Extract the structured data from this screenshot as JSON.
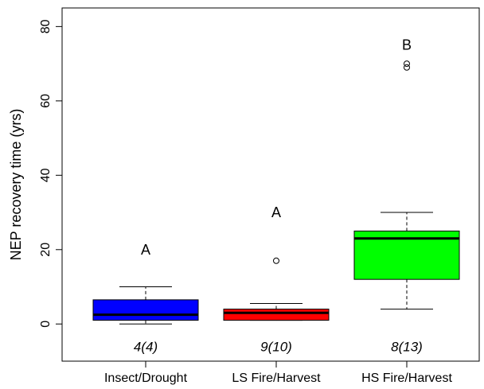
{
  "chart_data": {
    "type": "box",
    "ylabel": "NEP recovery time (yrs)",
    "ylim": [
      -10,
      85
    ],
    "yticks": [
      0,
      20,
      40,
      60,
      80
    ],
    "grid": false,
    "categories": [
      "Insect/Drought",
      "LS Fire/Harvest",
      "HS Fire/Harvest"
    ],
    "boxes": [
      {
        "category": "Insect/Drought",
        "color": "#0000FF",
        "whisker_low": 0,
        "q1": 1,
        "median": 2.5,
        "q3": 6.5,
        "whisker_high": 10,
        "outliers": [],
        "letter": "A",
        "n_label": "4(4)"
      },
      {
        "category": "LS Fire/Harvest",
        "color": "#FF0000",
        "whisker_low": 1,
        "q1": 1,
        "median": 3,
        "q3": 4,
        "whisker_high": 5.5,
        "outliers": [
          17
        ],
        "letter": "A",
        "n_label": "9(10)"
      },
      {
        "category": "HS Fire/Harvest",
        "color": "#00FF00",
        "whisker_low": 4,
        "q1": 12,
        "median": 23,
        "q3": 25,
        "whisker_high": 30,
        "outliers": [
          69,
          70
        ],
        "letter": "B",
        "n_label": "8(13)"
      }
    ],
    "letter_values": [
      20,
      30,
      75
    ],
    "n_label_value": -6
  }
}
